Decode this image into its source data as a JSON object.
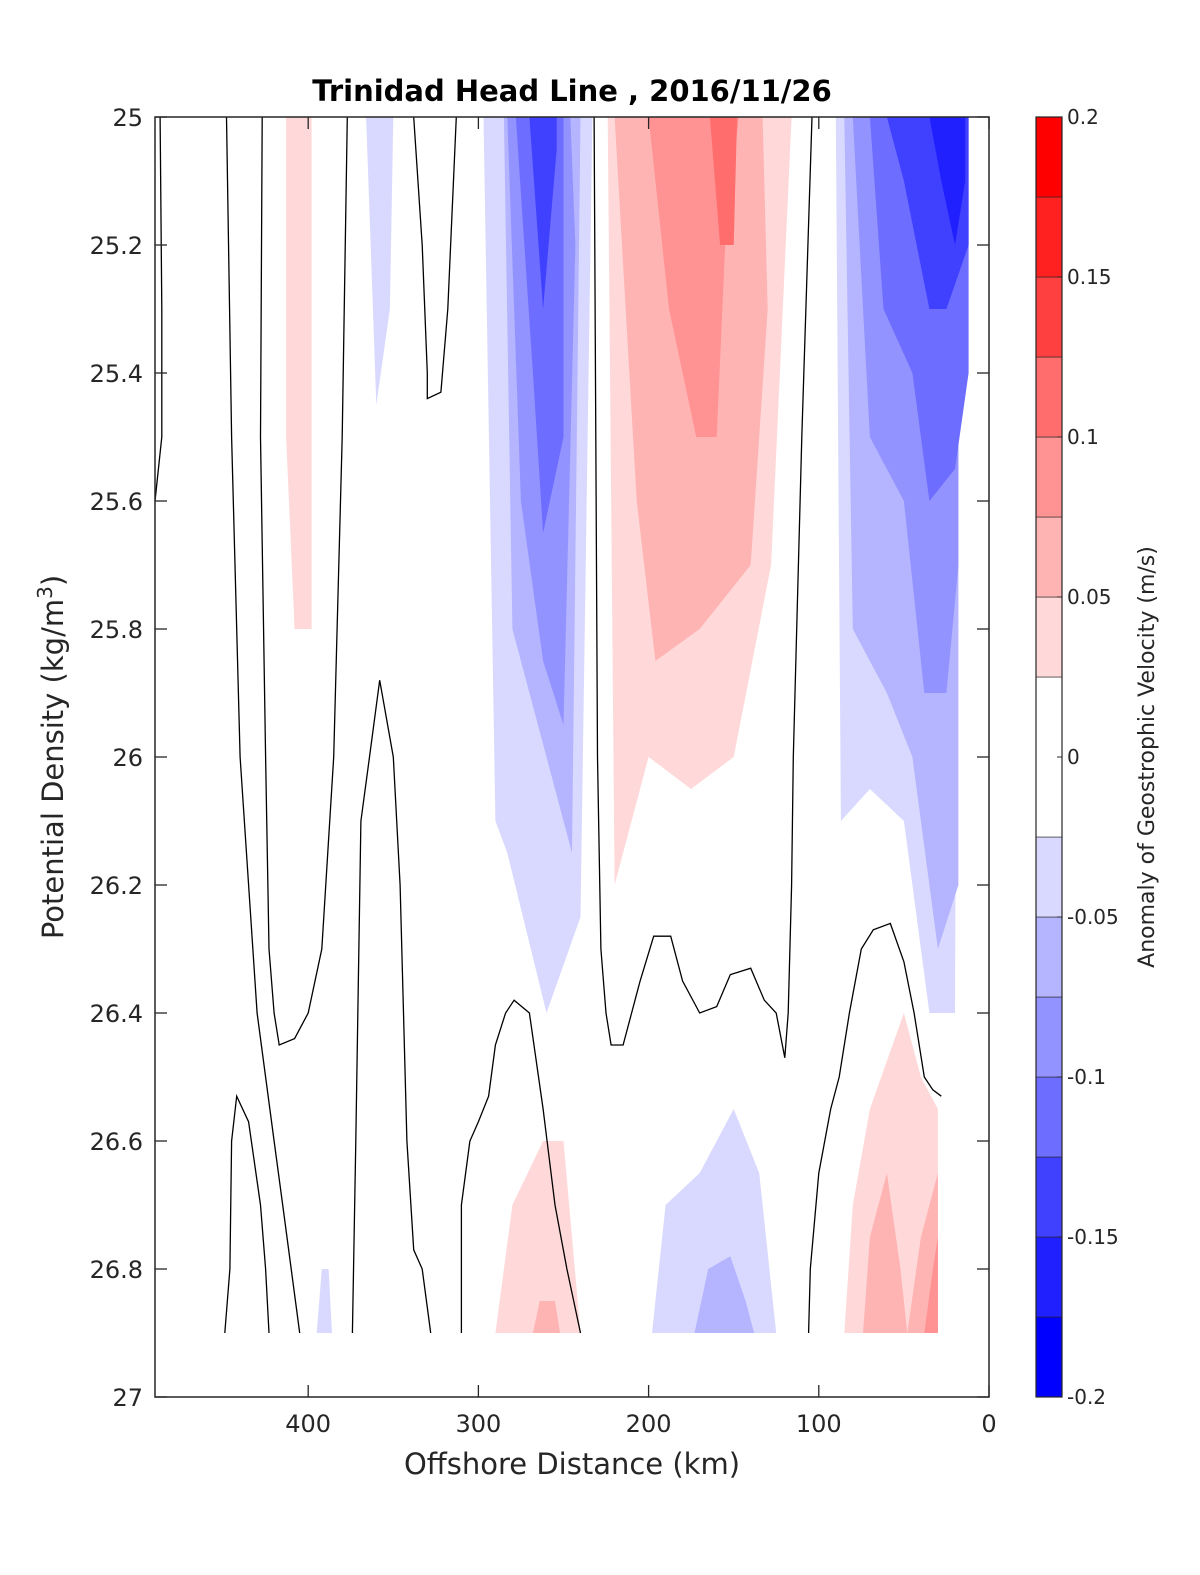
{
  "chart_data": {
    "type": "contour",
    "title": "Trinidad Head Line , 2016/11/26",
    "xlabel": "Offshore Distance (km)",
    "ylabel": "Potential Density (kg/m",
    "ylabel_sup": "3",
    "ylabel_close": ")",
    "xlim": [
      490,
      0
    ],
    "x_reversed": true,
    "ylim": [
      25,
      27
    ],
    "y_reversed": true,
    "x_ticks": [
      400,
      300,
      200,
      100,
      0
    ],
    "y_ticks": [
      25,
      25.2,
      25.4,
      25.6,
      25.8,
      26,
      26.2,
      26.4,
      26.6,
      26.8,
      27
    ],
    "grid": false,
    "colorbar": {
      "label": "Anomaly of Geostrophic Velocity (m/s)",
      "range": [
        -0.2,
        0.2
      ],
      "ticks": [
        -0.2,
        -0.15,
        -0.1,
        -0.05,
        0,
        0.05,
        0.1,
        0.15,
        0.2
      ],
      "tick_labels": [
        "-0.2",
        "-0.15",
        "-0.1",
        "-0.05",
        "0",
        "0.05",
        "0.1",
        "0.15",
        "0.2"
      ],
      "levels": [
        -0.2,
        -0.175,
        -0.15,
        -0.125,
        -0.1,
        -0.075,
        -0.05,
        -0.025,
        0.025,
        0.05,
        0.075,
        0.1,
        0.125,
        0.15,
        0.175,
        0.2
      ],
      "colors": [
        "#0000ff",
        "#2020ff",
        "#4040ff",
        "#6d6dff",
        "#9393ff",
        "#b4b4ff",
        "#d9d9ff",
        "#ffffff",
        "#ffd9d9",
        "#ffb4b4",
        "#ff9393",
        "#ff6d6d",
        "#ff4040",
        "#ff2020",
        "#ff0000"
      ]
    },
    "regions": [
      {
        "value": 0.0375,
        "color": "#ffd9d9",
        "points": [
          [
            413,
            25
          ],
          [
            398,
            25
          ],
          [
            398,
            25.8
          ],
          [
            408,
            25.8
          ],
          [
            413,
            25.5
          ]
        ]
      },
      {
        "value": -0.0375,
        "color": "#d9d9ff",
        "points": [
          [
            366,
            25
          ],
          [
            350,
            25
          ],
          [
            352,
            25.3
          ],
          [
            360,
            25.45
          ]
        ]
      },
      {
        "value": -0.0375,
        "color": "#d9d9ff",
        "points": [
          [
            297,
            25
          ],
          [
            290,
            26.1
          ],
          [
            283,
            26.15
          ],
          [
            260,
            26.4
          ],
          [
            240,
            26.25
          ],
          [
            233,
            25
          ]
        ]
      },
      {
        "value": -0.0625,
        "color": "#b4b4ff",
        "points": [
          [
            285,
            25
          ],
          [
            280,
            25.8
          ],
          [
            260,
            26.0
          ],
          [
            245,
            26.15
          ],
          [
            240,
            25
          ]
        ]
      },
      {
        "value": -0.0875,
        "color": "#9393ff",
        "points": [
          [
            283,
            25
          ],
          [
            275,
            25.6
          ],
          [
            262,
            25.85
          ],
          [
            250,
            25.95
          ],
          [
            243,
            25.2
          ],
          [
            246,
            25
          ]
        ]
      },
      {
        "value": -0.1125,
        "color": "#6d6dff",
        "points": [
          [
            278,
            25
          ],
          [
            268,
            25.4
          ],
          [
            262,
            25.65
          ],
          [
            250,
            25.5
          ],
          [
            250,
            25
          ]
        ]
      },
      {
        "value": -0.1375,
        "color": "#4040ff",
        "points": [
          [
            270,
            25
          ],
          [
            262,
            25.3
          ],
          [
            254,
            25.05
          ],
          [
            254,
            25
          ]
        ]
      },
      {
        "value": 0.0375,
        "color": "#ffd9d9",
        "points": [
          [
            224,
            25
          ],
          [
            220,
            26.2
          ],
          [
            200,
            26.0
          ],
          [
            175,
            26.05
          ],
          [
            150,
            26.0
          ],
          [
            128,
            25.7
          ],
          [
            116,
            25
          ]
        ]
      },
      {
        "value": 0.0625,
        "color": "#ffb4b4",
        "points": [
          [
            220,
            25
          ],
          [
            207,
            25.6
          ],
          [
            196,
            25.85
          ],
          [
            170,
            25.8
          ],
          [
            140,
            25.7
          ],
          [
            130,
            25.3
          ],
          [
            133,
            25
          ]
        ]
      },
      {
        "value": 0.0875,
        "color": "#ff9393",
        "points": [
          [
            200,
            25
          ],
          [
            188,
            25.3
          ],
          [
            172,
            25.5
          ],
          [
            160,
            25.5
          ],
          [
            155,
            25.2
          ],
          [
            147,
            25
          ]
        ]
      },
      {
        "value": 0.1125,
        "color": "#ff6d6d",
        "points": [
          [
            164,
            25
          ],
          [
            158,
            25.2
          ],
          [
            150,
            25.2
          ],
          [
            148,
            25
          ]
        ]
      },
      {
        "value": -0.0375,
        "color": "#d9d9ff",
        "points": [
          [
            90,
            25
          ],
          [
            87,
            26.1
          ],
          [
            70,
            26.05
          ],
          [
            50,
            26.1
          ],
          [
            35,
            26.4
          ],
          [
            20,
            26.4
          ],
          [
            18,
            25
          ]
        ]
      },
      {
        "value": -0.0625,
        "color": "#b4b4ff",
        "points": [
          [
            85,
            25
          ],
          [
            80,
            25.8
          ],
          [
            60,
            25.9
          ],
          [
            45,
            26.0
          ],
          [
            30,
            26.3
          ],
          [
            18,
            26.2
          ],
          [
            18,
            25
          ]
        ]
      },
      {
        "value": -0.0875,
        "color": "#9393ff",
        "points": [
          [
            80,
            25
          ],
          [
            70,
            25.5
          ],
          [
            50,
            25.6
          ],
          [
            38,
            25.9
          ],
          [
            25,
            25.9
          ],
          [
            18,
            25.7
          ],
          [
            18,
            25
          ]
        ]
      },
      {
        "value": -0.1125,
        "color": "#6d6dff",
        "points": [
          [
            70,
            25
          ],
          [
            62,
            25.3
          ],
          [
            45,
            25.4
          ],
          [
            35,
            25.6
          ],
          [
            20,
            25.55
          ],
          [
            12,
            25.4
          ],
          [
            12,
            25
          ]
        ]
      },
      {
        "value": -0.1375,
        "color": "#4040ff",
        "points": [
          [
            60,
            25
          ],
          [
            50,
            25.1
          ],
          [
            35,
            25.3
          ],
          [
            25,
            25.3
          ],
          [
            12,
            25.2
          ],
          [
            12,
            25
          ]
        ]
      },
      {
        "value": -0.1625,
        "color": "#2020ff",
        "points": [
          [
            35,
            25
          ],
          [
            28,
            25.1
          ],
          [
            20,
            25.2
          ],
          [
            14,
            25.1
          ],
          [
            14,
            25
          ]
        ]
      },
      {
        "value": 0.0375,
        "color": "#ffd9d9",
        "points": [
          [
            290,
            26.9
          ],
          [
            280,
            26.7
          ],
          [
            262,
            26.6
          ],
          [
            250,
            26.6
          ],
          [
            240,
            26.9
          ]
        ]
      },
      {
        "value": 0.0625,
        "color": "#ffb4b4",
        "points": [
          [
            268,
            26.9
          ],
          [
            264,
            26.85
          ],
          [
            255,
            26.85
          ],
          [
            252,
            26.9
          ]
        ]
      },
      {
        "value": -0.0375,
        "color": "#d9d9ff",
        "points": [
          [
            395,
            26.9
          ],
          [
            392,
            26.8
          ],
          [
            388,
            26.8
          ],
          [
            386,
            26.9
          ]
        ]
      },
      {
        "value": -0.0375,
        "color": "#d9d9ff",
        "points": [
          [
            198,
            26.9
          ],
          [
            190,
            26.7
          ],
          [
            170,
            26.65
          ],
          [
            150,
            26.55
          ],
          [
            135,
            26.65
          ],
          [
            125,
            26.9
          ]
        ]
      },
      {
        "value": -0.0625,
        "color": "#b4b4ff",
        "points": [
          [
            173,
            26.9
          ],
          [
            165,
            26.8
          ],
          [
            152,
            26.78
          ],
          [
            143,
            26.85
          ],
          [
            138,
            26.9
          ]
        ]
      },
      {
        "value": 0.0375,
        "color": "#ffd9d9",
        "points": [
          [
            85,
            26.9
          ],
          [
            80,
            26.7
          ],
          [
            70,
            26.55
          ],
          [
            50,
            26.4
          ],
          [
            40,
            26.5
          ],
          [
            30,
            26.55
          ],
          [
            30,
            26.9
          ]
        ]
      },
      {
        "value": 0.0625,
        "color": "#ffb4b4",
        "points": [
          [
            74,
            26.9
          ],
          [
            70,
            26.75
          ],
          [
            60,
            26.65
          ],
          [
            52,
            26.8
          ],
          [
            48,
            26.9
          ],
          [
            40,
            26.75
          ],
          [
            30,
            26.65
          ],
          [
            30,
            26.9
          ]
        ]
      },
      {
        "value": 0.0875,
        "color": "#ff9393",
        "points": [
          [
            38,
            26.9
          ],
          [
            33,
            26.8
          ],
          [
            30,
            26.75
          ],
          [
            30,
            26.9
          ]
        ]
      }
    ],
    "zero_contours": [
      [
        [
          487,
          25
        ],
        [
          486,
          25.3
        ],
        [
          486,
          25.5
        ],
        [
          490,
          25.6
        ]
      ],
      [
        [
          448,
          25
        ],
        [
          445,
          25.5
        ],
        [
          440,
          26.0
        ],
        [
          435,
          26.2
        ],
        [
          430,
          26.4
        ],
        [
          425,
          26.5
        ],
        [
          420,
          26.6
        ],
        [
          415,
          26.7
        ],
        [
          410,
          26.8
        ],
        [
          405,
          26.9
        ]
      ],
      [
        [
          427,
          25
        ],
        [
          428,
          25.5
        ],
        [
          425,
          26.0
        ],
        [
          423,
          26.3
        ],
        [
          420,
          26.4
        ],
        [
          417,
          26.45
        ],
        [
          408,
          26.44
        ],
        [
          400,
          26.4
        ],
        [
          392,
          26.3
        ],
        [
          385,
          26.0
        ],
        [
          380,
          25.5
        ],
        [
          377,
          25
        ]
      ],
      [
        [
          338,
          25
        ],
        [
          333,
          25.2
        ],
        [
          330,
          25.4
        ],
        [
          330,
          25.44
        ],
        [
          322,
          25.43
        ],
        [
          318,
          25.3
        ],
        [
          313,
          25
        ]
      ],
      [
        [
          374,
          26.9
        ],
        [
          372,
          26.6
        ],
        [
          369,
          26.1
        ],
        [
          364,
          26.0
        ],
        [
          358,
          25.88
        ],
        [
          350,
          26.0
        ],
        [
          346,
          26.2
        ],
        [
          342,
          26.6
        ],
        [
          338,
          26.77
        ],
        [
          333,
          26.8
        ],
        [
          328,
          26.9
        ]
      ],
      [
        [
          449,
          26.9
        ],
        [
          446,
          26.8
        ],
        [
          445,
          26.6
        ],
        [
          442,
          26.53
        ],
        [
          435,
          26.57
        ],
        [
          428,
          26.7
        ],
        [
          425,
          26.8
        ],
        [
          423,
          26.9
        ]
      ],
      [
        [
          310,
          26.9
        ],
        [
          310,
          26.7
        ],
        [
          305,
          26.6
        ],
        [
          300,
          26.57
        ],
        [
          294,
          26.53
        ],
        [
          290,
          26.45
        ],
        [
          284,
          26.4
        ],
        [
          279,
          26.38
        ],
        [
          270,
          26.4
        ],
        [
          262,
          26.55
        ],
        [
          255,
          26.7
        ],
        [
          248,
          26.8
        ],
        [
          240,
          26.9
        ]
      ],
      [
        [
          232,
          25
        ],
        [
          231,
          25.5
        ],
        [
          230,
          26.0
        ],
        [
          228,
          26.3
        ],
        [
          225,
          26.4
        ],
        [
          222,
          26.45
        ],
        [
          215,
          26.45
        ],
        [
          210,
          26.4
        ],
        [
          205,
          26.35
        ],
        [
          197,
          26.28
        ],
        [
          187,
          26.28
        ],
        [
          180,
          26.35
        ],
        [
          170,
          26.4
        ],
        [
          160,
          26.39
        ],
        [
          152,
          26.34
        ],
        [
          140,
          26.33
        ],
        [
          132,
          26.38
        ],
        [
          125,
          26.4
        ],
        [
          120,
          26.47
        ],
        [
          118,
          26.4
        ],
        [
          116,
          26.2
        ],
        [
          115,
          26.0
        ],
        [
          110,
          25.5
        ],
        [
          104,
          25
        ]
      ],
      [
        [
          106,
          26.9
        ],
        [
          105,
          26.8
        ],
        [
          100,
          26.65
        ],
        [
          93,
          26.55
        ],
        [
          88,
          26.5
        ],
        [
          82,
          26.4
        ],
        [
          75,
          26.3
        ],
        [
          68,
          26.27
        ],
        [
          58,
          26.26
        ],
        [
          50,
          26.32
        ],
        [
          44,
          26.4
        ],
        [
          38,
          26.5
        ],
        [
          33,
          26.52
        ],
        [
          28,
          26.53
        ]
      ]
    ]
  }
}
